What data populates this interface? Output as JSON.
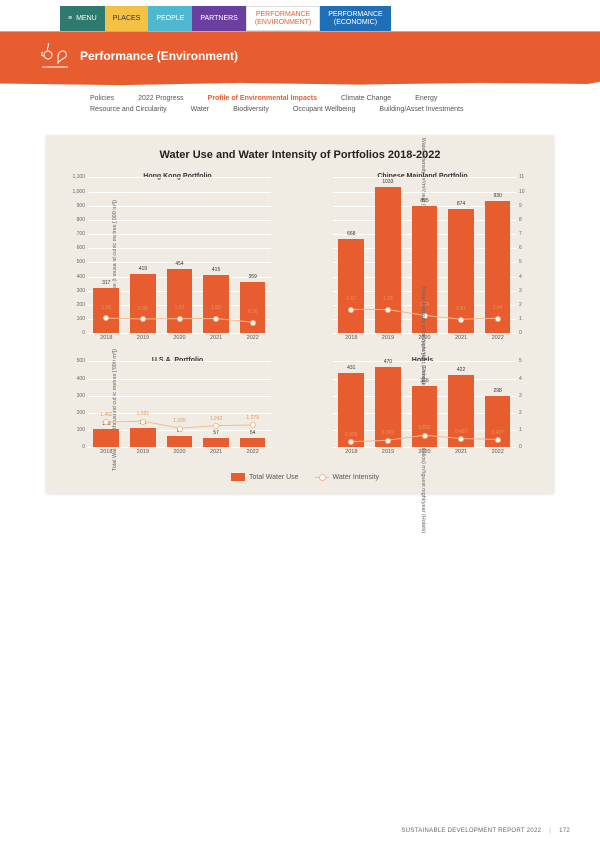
{
  "nav": {
    "menu": "MENU",
    "places": "PLACES",
    "people": "PEOPLE",
    "partners": "PARTNERS",
    "perf_env_l1": "PERFORMANCE",
    "perf_env_l2": "(ENVIRONMENT)",
    "perf_eco_l1": "PERFORMANCE",
    "perf_eco_l2": "(ECONOMIC)"
  },
  "banner": {
    "title": "Performance (Environment)"
  },
  "subnav": {
    "a": "Policies",
    "b": "2022 Progress",
    "c": "Profile of Environmental Impacts",
    "d": "Climate Change",
    "e": "Energy",
    "f": "Resource and Circularity",
    "g": "Water",
    "h": "Biodiversity",
    "i": "Occupant Wellbeing",
    "j": "Building/Asset Investments"
  },
  "chart": {
    "title": "Water Use and Water Intensity of Portfolios 2018-2022",
    "y_left_big": "Total Water Use (thousand cubic metres ['000 m³])",
    "y_left_small": "Total Water Use (thousand cubic metres ['000 m³])",
    "y_right_big": "Water Intensity\nm³/m²/year (HK, Chinese Mainland and U.S.A. Portfolios)\nm³/guest night/year (Hotels)",
    "y_right_small": "Water Intensity\nm³/m²/year (HK, Chinese Mainland and U.S.A. Portfolios)\nm³/guest night/year (Hotels)",
    "panels": {
      "hk": {
        "subtitle": "Hong Kong Portfolio",
        "years": [
          "2018",
          "2019",
          "2020",
          "2021",
          "2022"
        ],
        "bars": [
          317,
          419,
          454,
          415,
          359
        ],
        "line": [
          1.05,
          0.99,
          1.01,
          1.02,
          0.76
        ],
        "line_labels": [
          "1.05",
          "0.99",
          "1.01",
          "1.02",
          "0.76"
        ],
        "ymax": 1100,
        "ystep": 100,
        "rmax": 11,
        "rstep": 1
      },
      "cn": {
        "subtitle": "Chinese Mainland Portfolio",
        "years": [
          "2018",
          "2019",
          "2020",
          "2021",
          "2022"
        ],
        "bars": [
          668,
          1033,
          895,
          874,
          930
        ],
        "line": [
          1.67,
          1.65,
          1.24,
          0.97,
          1.04
        ],
        "line_labels": [
          "1.67",
          "1.65",
          "1.24",
          "0.97",
          "1.04"
        ],
        "ymax": 1100,
        "ystep": 100,
        "rmax": 11,
        "rstep": 1
      },
      "usa": {
        "subtitle": "U.S.A. Portfolio",
        "years": [
          "2018",
          "2019",
          "2020",
          "2021",
          "2022"
        ],
        "bars": [
          106,
          111,
          64,
          57,
          54
        ],
        "line": [
          1.45,
          1.501,
          1.095,
          1.242,
          1.279
        ],
        "line_labels": [
          "1.450",
          "1.501",
          "1.095",
          "1.242",
          "1.279"
        ],
        "ymax": 500,
        "ystep": 100,
        "rmax": 5,
        "rstep": 1
      },
      "hotels": {
        "subtitle": "Hotels",
        "years": [
          "2018",
          "2019",
          "2020",
          "2021",
          "2022"
        ],
        "bars": [
          431,
          470,
          356,
          422,
          298
        ],
        "line": [
          0.306,
          0.392,
          0.682,
          0.497,
          0.437
        ],
        "line_labels": [
          "0.306",
          "0.392",
          "0.682",
          "0.497",
          "0.437"
        ],
        "ymax": 500,
        "ystep": 100,
        "rmax": 5,
        "rstep": 1
      }
    },
    "legend": {
      "bar": "Total Water Use",
      "line": "Water Intensity"
    },
    "colors": {
      "bar": "#e85d2f",
      "line": "#f9b88a",
      "grid": "#ffffff",
      "bg": "#f0ece4"
    }
  },
  "footer": {
    "text": "SUSTAINABLE DEVELOPMENT REPORT 2022",
    "page": "172"
  }
}
